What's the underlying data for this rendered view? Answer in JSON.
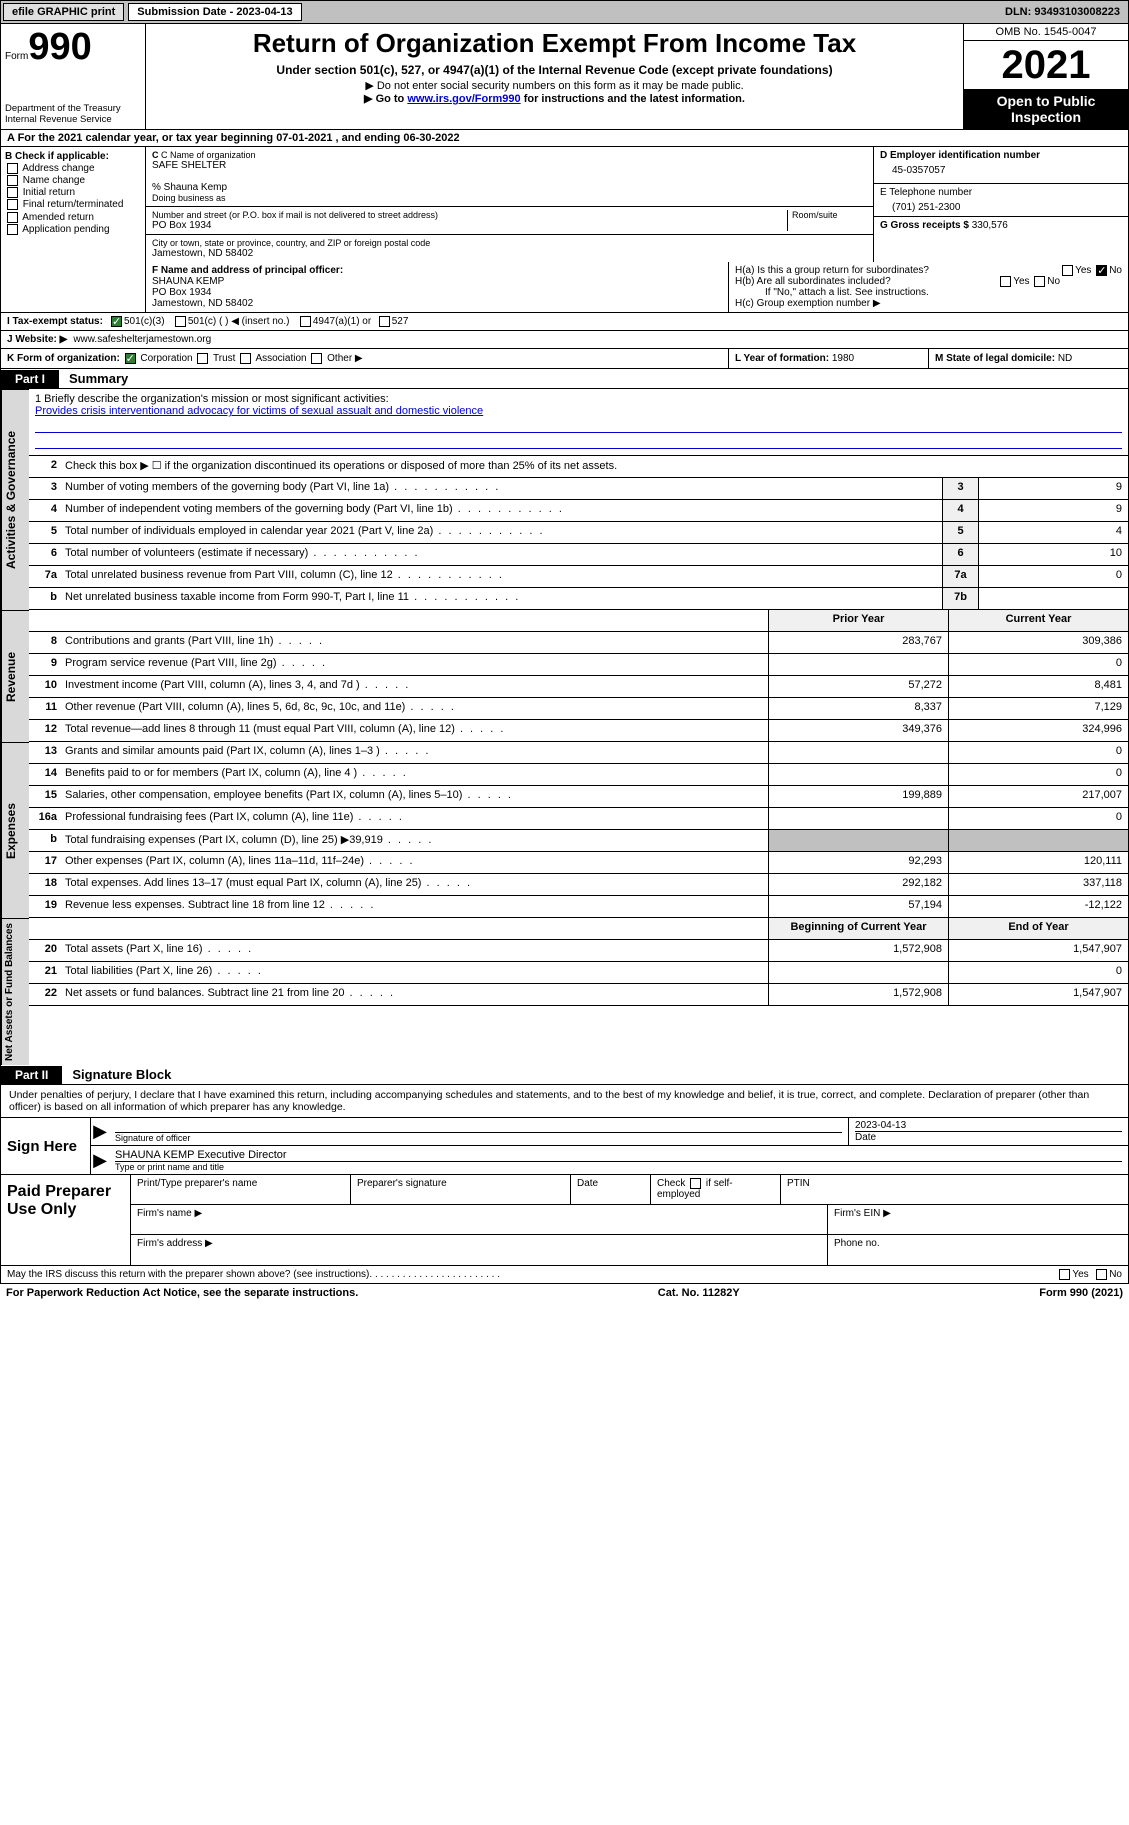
{
  "topbar": {
    "efile": "efile GRAPHIC print",
    "submission_label": "Submission Date - 2023-04-13",
    "dln": "DLN: 93493103008223"
  },
  "header": {
    "form_label": "Form",
    "form_number": "990",
    "dept": "Department of the Treasury\nInternal Revenue Service",
    "title": "Return of Organization Exempt From Income Tax",
    "sub1": "Under section 501(c), 527, or 4947(a)(1) of the Internal Revenue Code (except private foundations)",
    "sub2": "▶ Do not enter social security numbers on this form as it may be made public.",
    "sub3_pre": "▶ Go to ",
    "sub3_link": "www.irs.gov/Form990",
    "sub3_post": " for instructions and the latest information.",
    "omb": "OMB No. 1545-0047",
    "year": "2021",
    "inspection": "Open to Public Inspection"
  },
  "section_a": "A   For the 2021 calendar year, or tax year beginning 07-01-2021   , and ending 06-30-2022",
  "b": {
    "label": "B Check if applicable:",
    "opts": [
      "Address change",
      "Name change",
      "Initial return",
      "Final return/terminated",
      "Amended return",
      "Application pending"
    ]
  },
  "c": {
    "name_label": "C Name of organization",
    "name": "SAFE SHELTER",
    "care": "% Shauna Kemp",
    "dba_label": "Doing business as",
    "street_label": "Number and street (or P.O. box if mail is not delivered to street address)",
    "room_label": "Room/suite",
    "street": "PO Box 1934",
    "city_label": "City or town, state or province, country, and ZIP or foreign postal code",
    "city": "Jamestown, ND  58402"
  },
  "d": {
    "ein_label": "D Employer identification number",
    "ein": "45-0357057",
    "tel_label": "E Telephone number",
    "tel": "(701) 251-2300",
    "gross_label": "G Gross receipts $",
    "gross": "330,576"
  },
  "f": {
    "label": "F  Name and address of principal officer:",
    "name": "SHAUNA KEMP",
    "street": "PO Box 1934",
    "city": "Jamestown, ND  58402"
  },
  "h": {
    "a": "H(a)  Is this a group return for subordinates?",
    "b": "H(b)  Are all subordinates included?",
    "b_note": "If \"No,\" attach a list. See instructions.",
    "c": "H(c)  Group exemption number ▶",
    "yes": "Yes",
    "no": "No"
  },
  "i": {
    "label": "I  Tax-exempt status:",
    "o1": "501(c)(3)",
    "o2": "501(c) (   ) ◀ (insert no.)",
    "o3": "4947(a)(1) or",
    "o4": "527"
  },
  "j": {
    "label": "J  Website: ▶",
    "url": "www.safeshelterjamestown.org"
  },
  "k": {
    "label": "K Form of organization:",
    "o1": "Corporation",
    "o2": "Trust",
    "o3": "Association",
    "o4": "Other ▶"
  },
  "l": {
    "label": "L Year of formation:",
    "val": "1980"
  },
  "m": {
    "label": "M State of legal domicile:",
    "val": "ND"
  },
  "part1": {
    "tab": "Part I",
    "title": "Summary"
  },
  "vtabs": {
    "ag": "Activities & Governance",
    "rev": "Revenue",
    "exp": "Expenses",
    "na": "Net Assets or Fund Balances"
  },
  "mission": {
    "q": "1   Briefly describe the organization's mission or most significant activities:",
    "a": "Provides crisis interventionand advocacy for victims of sexual assualt and domestic violence"
  },
  "line2": "Check this box ▶ ☐  if the organization discontinued its operations or disposed of more than 25% of its net assets.",
  "lines_ag": [
    {
      "n": "3",
      "d": "Number of voting members of the governing body (Part VI, line 1a)",
      "bn": "3",
      "v": "9"
    },
    {
      "n": "4",
      "d": "Number of independent voting members of the governing body (Part VI, line 1b)",
      "bn": "4",
      "v": "9"
    },
    {
      "n": "5",
      "d": "Total number of individuals employed in calendar year 2021 (Part V, line 2a)",
      "bn": "5",
      "v": "4"
    },
    {
      "n": "6",
      "d": "Total number of volunteers (estimate if necessary)",
      "bn": "6",
      "v": "10"
    },
    {
      "n": "7a",
      "d": "Total unrelated business revenue from Part VIII, column (C), line 12",
      "bn": "7a",
      "v": "0"
    },
    {
      "n": "b",
      "d": "Net unrelated business taxable income from Form 990-T, Part I, line 11",
      "bn": "7b",
      "v": ""
    }
  ],
  "hdr_py": "Prior Year",
  "hdr_cy": "Current Year",
  "lines_rev": [
    {
      "n": "8",
      "d": "Contributions and grants (Part VIII, line 1h)",
      "p": "283,767",
      "c": "309,386"
    },
    {
      "n": "9",
      "d": "Program service revenue (Part VIII, line 2g)",
      "p": "",
      "c": "0"
    },
    {
      "n": "10",
      "d": "Investment income (Part VIII, column (A), lines 3, 4, and 7d )",
      "p": "57,272",
      "c": "8,481"
    },
    {
      "n": "11",
      "d": "Other revenue (Part VIII, column (A), lines 5, 6d, 8c, 9c, 10c, and 11e)",
      "p": "8,337",
      "c": "7,129"
    },
    {
      "n": "12",
      "d": "Total revenue—add lines 8 through 11 (must equal Part VIII, column (A), line 12)",
      "p": "349,376",
      "c": "324,996"
    }
  ],
  "lines_exp": [
    {
      "n": "13",
      "d": "Grants and similar amounts paid (Part IX, column (A), lines 1–3 )",
      "p": "",
      "c": "0"
    },
    {
      "n": "14",
      "d": "Benefits paid to or for members (Part IX, column (A), line 4 )",
      "p": "",
      "c": "0"
    },
    {
      "n": "15",
      "d": "Salaries, other compensation, employee benefits (Part IX, column (A), lines 5–10)",
      "p": "199,889",
      "c": "217,007"
    },
    {
      "n": "16a",
      "d": "Professional fundraising fees (Part IX, column (A), line 11e)",
      "p": "",
      "c": "0"
    },
    {
      "n": "b",
      "d": "Total fundraising expenses (Part IX, column (D), line 25) ▶39,919",
      "p": "shaded",
      "c": "shaded"
    },
    {
      "n": "17",
      "d": "Other expenses (Part IX, column (A), lines 11a–11d, 11f–24e)",
      "p": "92,293",
      "c": "120,111"
    },
    {
      "n": "18",
      "d": "Total expenses. Add lines 13–17 (must equal Part IX, column (A), line 25)",
      "p": "292,182",
      "c": "337,118"
    },
    {
      "n": "19",
      "d": "Revenue less expenses. Subtract line 18 from line 12",
      "p": "57,194",
      "c": "-12,122"
    }
  ],
  "hdr_bcy": "Beginning of Current Year",
  "hdr_eoy": "End of Year",
  "lines_na": [
    {
      "n": "20",
      "d": "Total assets (Part X, line 16)",
      "p": "1,572,908",
      "c": "1,547,907"
    },
    {
      "n": "21",
      "d": "Total liabilities (Part X, line 26)",
      "p": "",
      "c": "0"
    },
    {
      "n": "22",
      "d": "Net assets or fund balances. Subtract line 21 from line 20",
      "p": "1,572,908",
      "c": "1,547,907"
    }
  ],
  "part2": {
    "tab": "Part II",
    "title": "Signature Block"
  },
  "sig": {
    "decl": "Under penalties of perjury, I declare that I have examined this return, including accompanying schedules and statements, and to the best of my knowledge and belief, it is true, correct, and complete. Declaration of preparer (other than officer) is based on all information of which preparer has any knowledge.",
    "sign_here": "Sign Here",
    "sig_officer": "Signature of officer",
    "date": "Date",
    "date_val": "2023-04-13",
    "name": "SHAUNA KEMP Executive Director",
    "typed": "Type or print name and title"
  },
  "prep": {
    "label": "Paid Preparer Use Only",
    "c1": "Print/Type preparer's name",
    "c2": "Preparer's signature",
    "c3": "Date",
    "c4a": "Check",
    "c4b": "if self-employed",
    "c5": "PTIN",
    "firm_name": "Firm's name   ▶",
    "firm_ein": "Firm's EIN ▶",
    "firm_addr": "Firm's address ▶",
    "phone": "Phone no."
  },
  "footer": {
    "discuss": "May the IRS discuss this return with the preparer shown above? (see instructions)",
    "yes": "Yes",
    "no": "No",
    "pra": "For Paperwork Reduction Act Notice, see the separate instructions.",
    "cat": "Cat. No. 11282Y",
    "form": "Form 990 (2021)"
  }
}
